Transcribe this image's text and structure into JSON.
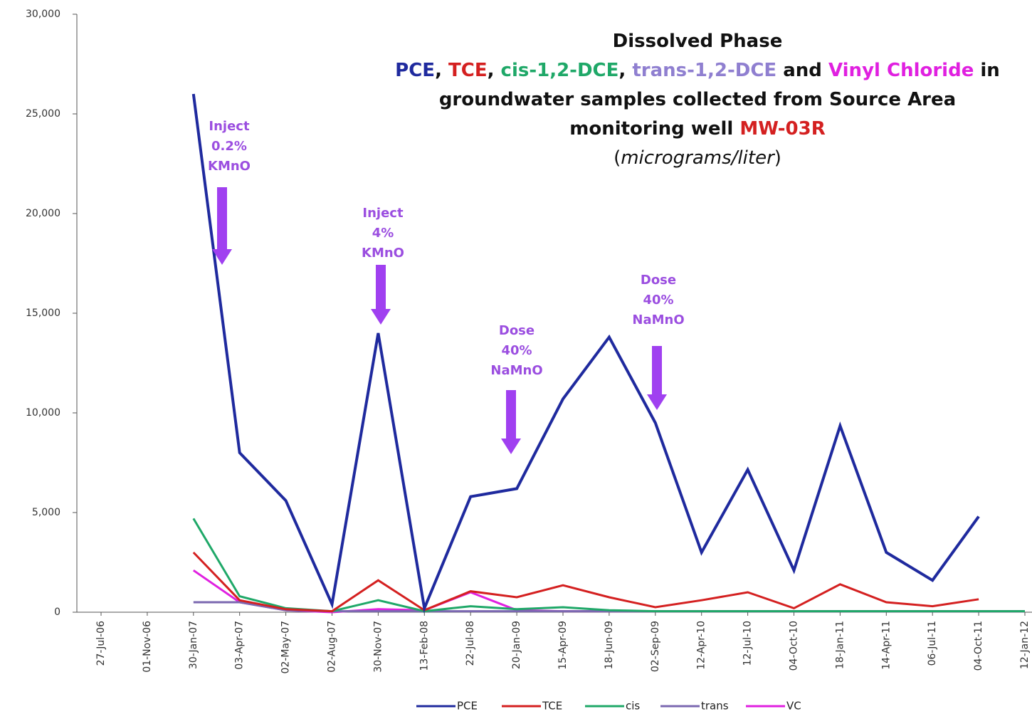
{
  "chart_data": {
    "type": "line",
    "title_lines": [
      [
        {
          "text": "Dissolved Phase",
          "color": "#111111"
        }
      ],
      [
        {
          "text": "PCE",
          "color": "#1f2a9e"
        },
        {
          "text": ", ",
          "color": "#111111"
        },
        {
          "text": "TCE",
          "color": "#d42020"
        },
        {
          "text": ", ",
          "color": "#111111"
        },
        {
          "text": "cis-1,2-DCE",
          "color": "#1fa868"
        },
        {
          "text": ", ",
          "color": "#111111"
        },
        {
          "text": "trans-1,2-DCE",
          "color": "#8f7fd0"
        },
        {
          "text": " and ",
          "color": "#111111"
        },
        {
          "text": "Vinyl Chloride",
          "color": "#e020e0"
        },
        {
          "text": " in",
          "color": "#111111"
        }
      ],
      [
        {
          "text": "groundwater samples collected from Source Area",
          "color": "#111111"
        }
      ],
      [
        {
          "text": "monitoring well ",
          "color": "#111111"
        },
        {
          "text": "MW-03R",
          "color": "#d42020"
        }
      ],
      [
        {
          "text": "(",
          "color": "#111111"
        },
        {
          "text": "micrograms/liter",
          "color": "#111111",
          "italic": true
        },
        {
          "text": ")",
          "color": "#111111"
        }
      ]
    ],
    "annotations": [
      [
        "Inject",
        "0.2%",
        "KMnO"
      ],
      [
        "Inject",
        "4%",
        "KMnO"
      ],
      [
        "Dose",
        "40%",
        "NaMnO"
      ],
      [
        "Dose",
        "40%",
        "NaMnO"
      ]
    ],
    "annotation_color": "#a040f0",
    "categories": [
      "27-Jul-06",
      "01-Nov-06",
      "30-Jan-07",
      "03-Apr-07",
      "02-May-07",
      "02-Aug-07",
      "30-Nov-07",
      "13-Feb-08",
      "22-Jul-08",
      "20-Jan-09",
      "15-Apr-09",
      "18-Jun-09",
      "02-Sep-09",
      "12-Apr-10",
      "12-Jul-10",
      "04-Oct-10",
      "18-Jan-11",
      "14-Apr-11",
      "06-Jul-11",
      "04-Oct-11",
      "12-Jan-12"
    ],
    "series": [
      {
        "name": "PCE",
        "color": "#1f2a9e",
        "values": [
          null,
          null,
          26000,
          8000,
          5600,
          400,
          14000,
          200,
          5800,
          6200,
          10700,
          13800,
          9500,
          3000,
          7150,
          2100,
          9350,
          3000,
          1600,
          4800,
          null
        ]
      },
      {
        "name": "TCE",
        "color": "#d42020",
        "values": [
          null,
          null,
          3000,
          600,
          150,
          50,
          1600,
          100,
          1050,
          750,
          1350,
          750,
          250,
          600,
          1000,
          200,
          1400,
          500,
          300,
          650,
          null
        ]
      },
      {
        "name": "cis",
        "color": "#1fa868",
        "values": [
          null,
          null,
          4700,
          800,
          200,
          50,
          600,
          50,
          300,
          150,
          250,
          100,
          50,
          50,
          50,
          50,
          50,
          50,
          50,
          50,
          50
        ]
      },
      {
        "name": "trans",
        "color": "#7b68b0",
        "values": [
          null,
          null,
          500,
          500,
          100,
          50,
          50,
          50,
          50,
          50,
          50,
          50,
          50,
          50,
          50,
          50,
          50,
          50,
          50,
          50,
          50
        ]
      },
      {
        "name": "VC",
        "color": "#e020e0",
        "values": [
          null,
          null,
          2100,
          500,
          100,
          0,
          150,
          100,
          1000,
          100,
          50,
          50,
          50,
          50,
          50,
          50,
          50,
          50,
          50,
          50,
          50
        ]
      }
    ],
    "ylim": [
      0,
      30000
    ],
    "yticks": [
      0,
      {
        "value": 5000,
        "label": "5,000"
      },
      {
        "value": 10000,
        "label": "10,000"
      },
      {
        "value": 15000,
        "label": "15,000"
      },
      {
        "value": 20000,
        "label": "20,000"
      },
      {
        "value": 25000,
        "label": "25,000"
      },
      {
        "value": 30000,
        "label": "30,000"
      }
    ],
    "legend": "bottom"
  }
}
